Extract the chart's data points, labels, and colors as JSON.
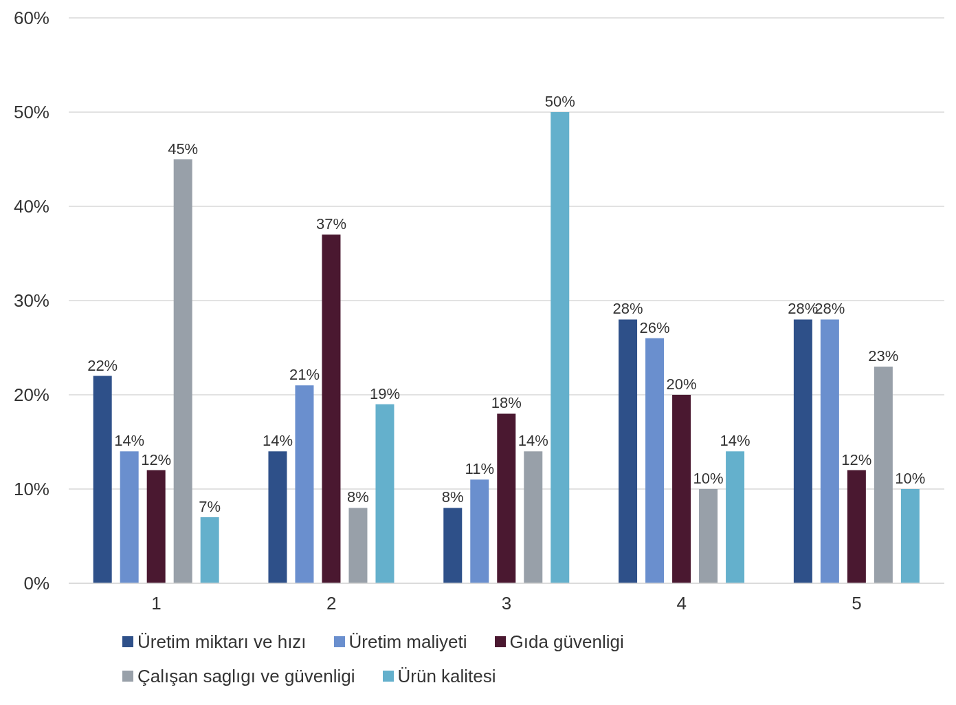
{
  "chart_data": {
    "type": "bar",
    "categories": [
      "1",
      "2",
      "3",
      "4",
      "5"
    ],
    "series": [
      {
        "name": "Üretim miktarı ve hızı",
        "color": "#2e5089",
        "values": [
          22,
          14,
          8,
          28,
          28
        ],
        "value_labels": [
          "22%",
          "14%",
          "8%",
          "28%",
          "28%"
        ]
      },
      {
        "name": "Üretim maliyeti",
        "color": "#6a8fce",
        "values": [
          14,
          21,
          11,
          26,
          28
        ],
        "value_labels": [
          "14%",
          "21%",
          "11%",
          "26%",
          "28%"
        ]
      },
      {
        "name": "Gıda güvenligi",
        "color": "#4a1830",
        "values": [
          12,
          37,
          18,
          20,
          12
        ],
        "value_labels": [
          "12%",
          "37%",
          "18%",
          "20%",
          "12%"
        ]
      },
      {
        "name": "Çalışan saglıgı ve güvenligi",
        "color": "#98a0a9",
        "values": [
          45,
          8,
          14,
          10,
          23
        ],
        "value_labels": [
          "45%",
          "8%",
          "14%",
          "10%",
          "23%"
        ]
      },
      {
        "name": "Ürün kalitesi",
        "color": "#64b0cc",
        "values": [
          7,
          19,
          50,
          14,
          10
        ],
        "value_labels": [
          "7%",
          "19%",
          "50%",
          "14%",
          "10%"
        ]
      }
    ],
    "ylim": [
      0,
      60
    ],
    "yticks": [
      {
        "value": 0,
        "label": "0%"
      },
      {
        "value": 10,
        "label": "10%"
      },
      {
        "value": 20,
        "label": "20%"
      },
      {
        "value": 30,
        "label": "30%"
      },
      {
        "value": 40,
        "label": "40%"
      },
      {
        "value": 50,
        "label": "50%"
      },
      {
        "value": 60,
        "label": "60%"
      }
    ],
    "grid": "y",
    "legend": "bottom"
  }
}
